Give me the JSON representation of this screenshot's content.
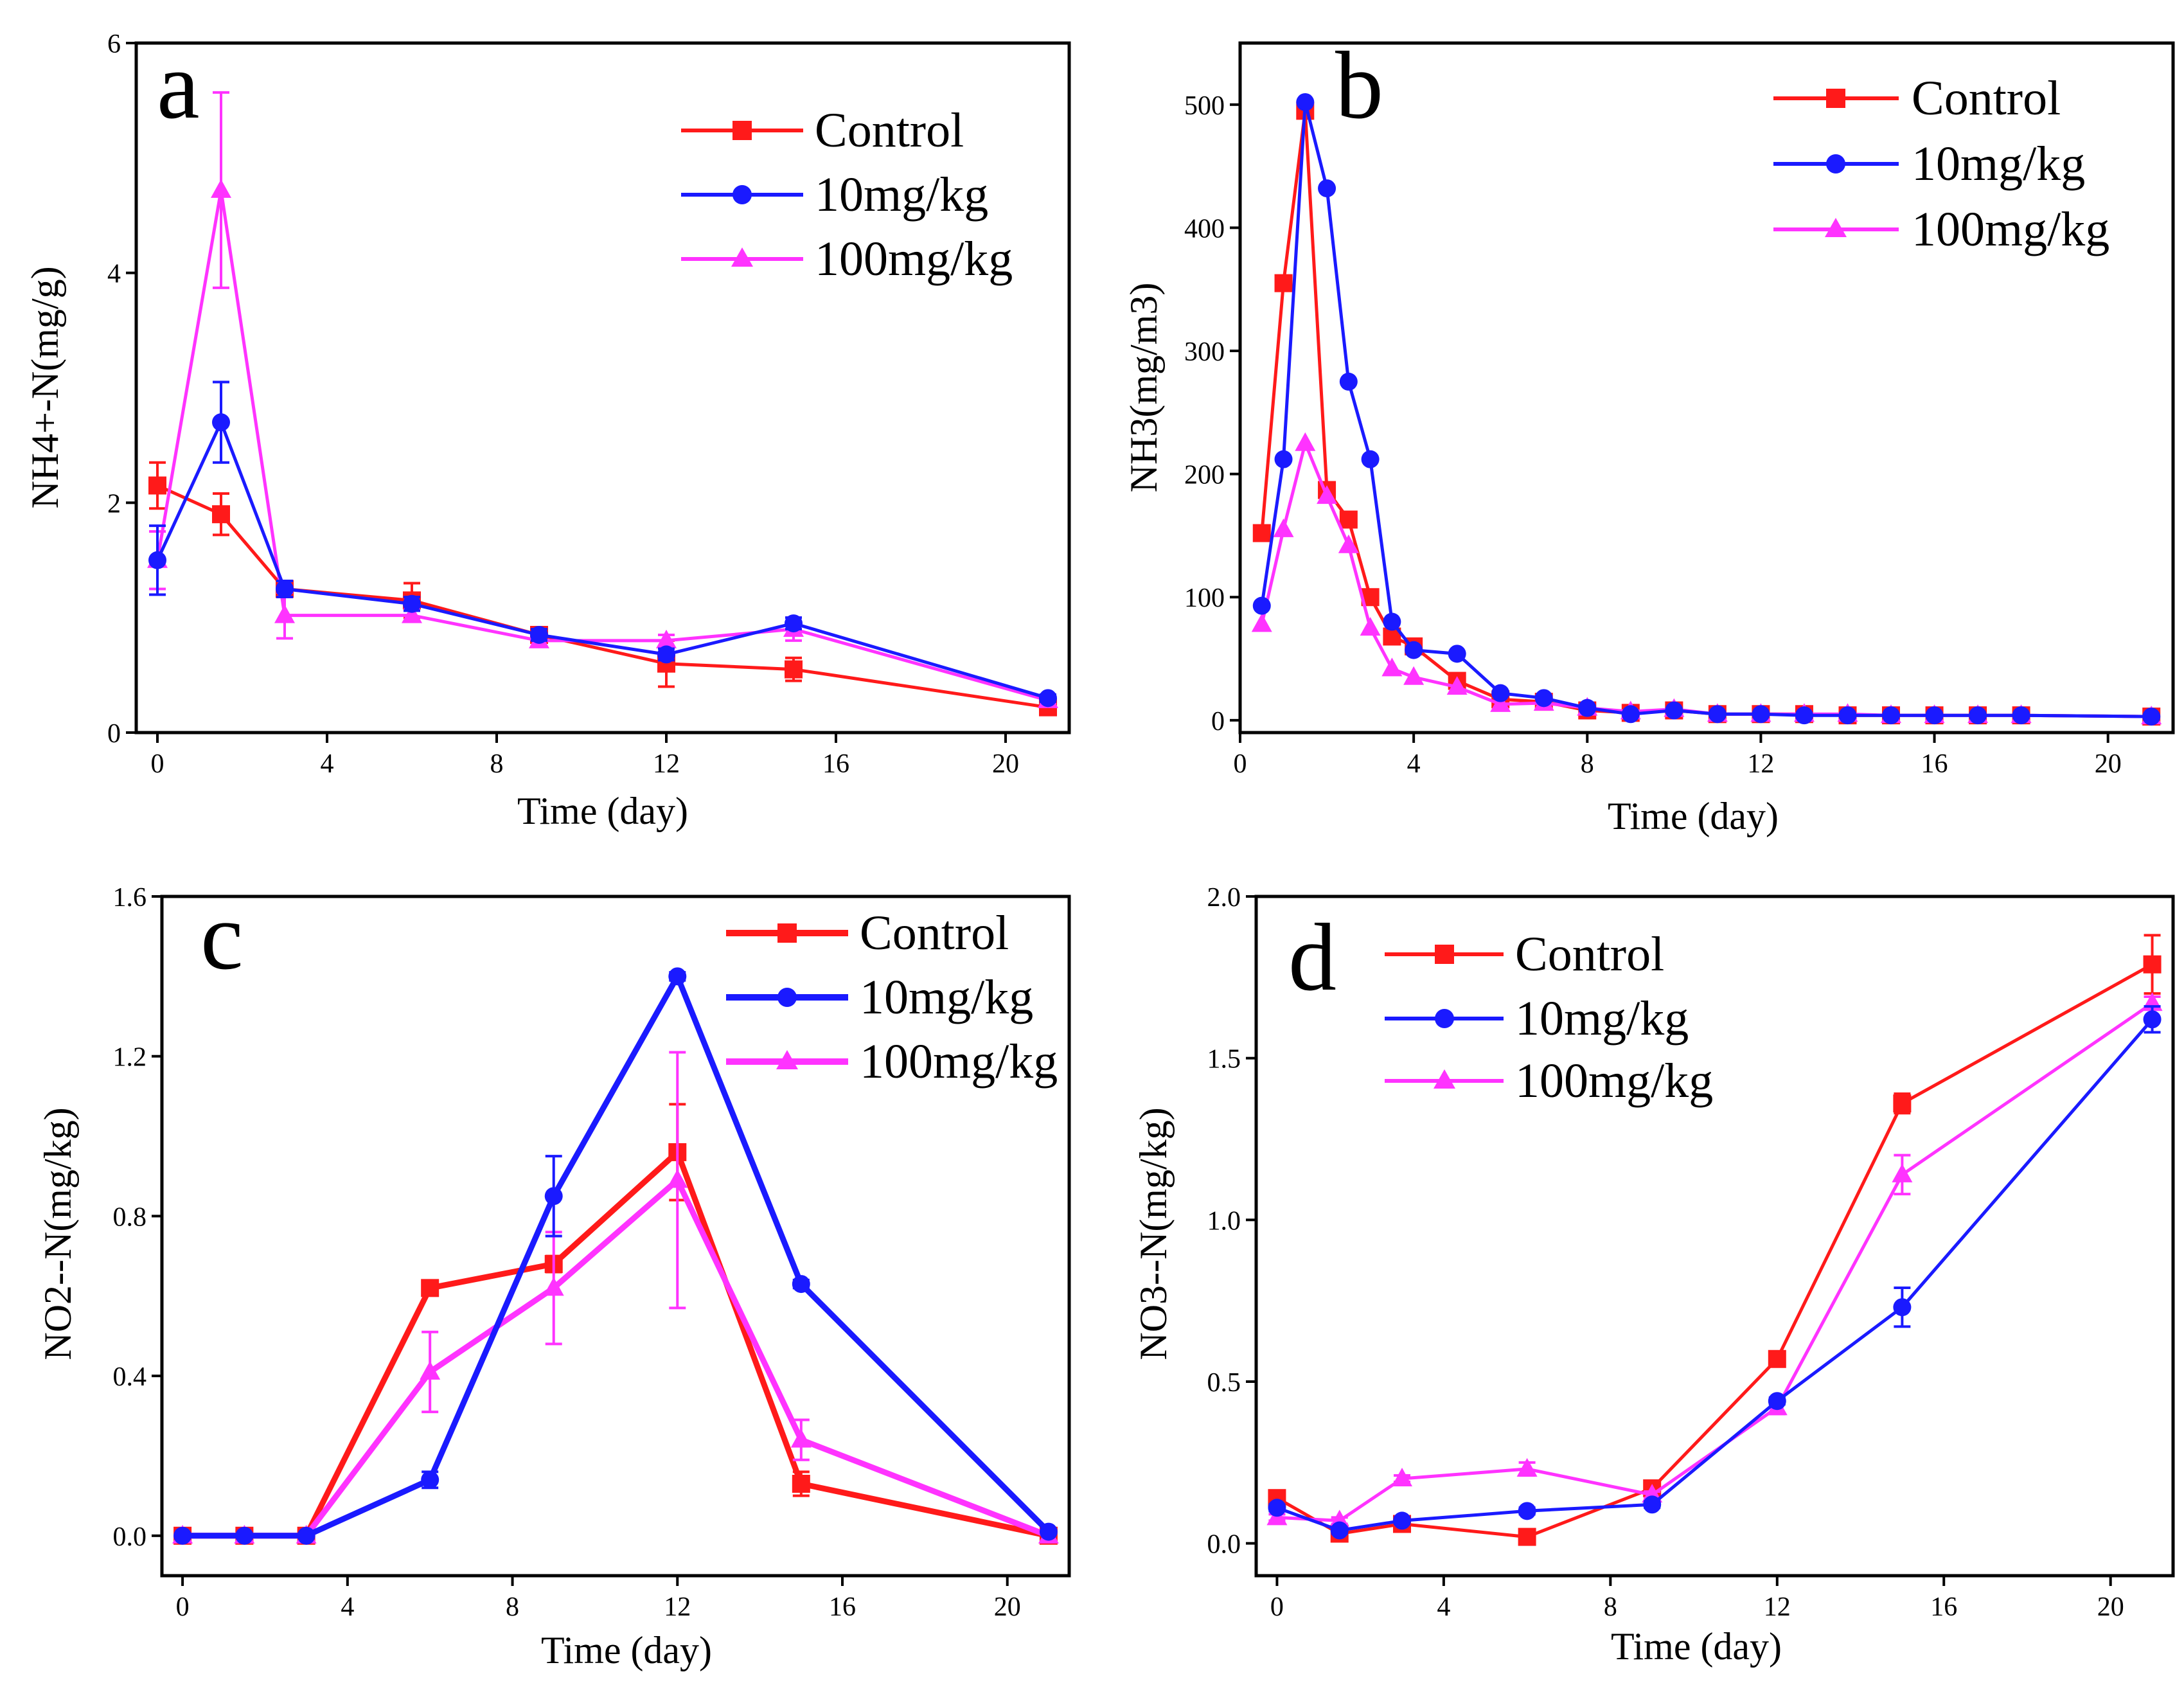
{
  "colors": {
    "control": "#ff1a1a",
    "low": "#1a1aff",
    "high": "#ff33ff"
  },
  "chart_data": [
    {
      "type": "line",
      "panel": "a",
      "xlabel": "Time (day)",
      "ylabel": "NH4+-N(mg/g)",
      "xlim": [
        -0.5,
        21.5
      ],
      "ylim": [
        0,
        6
      ],
      "xticks": [
        0,
        4,
        8,
        12,
        16,
        20
      ],
      "yticks": [
        0,
        2,
        4,
        6
      ],
      "legend": "top-right",
      "series": [
        {
          "name": "Control",
          "color_key": "control",
          "marker": "square",
          "x": [
            0,
            1.5,
            3,
            6,
            9,
            12,
            15,
            21
          ],
          "y": [
            2.15,
            1.9,
            1.25,
            1.15,
            0.85,
            0.6,
            0.55,
            0.22
          ],
          "err": [
            0.2,
            0.18,
            0.07,
            0.15,
            0.05,
            0.2,
            0.1,
            0.05
          ]
        },
        {
          "name": "10mg/kg",
          "color_key": "low",
          "marker": "circle",
          "x": [
            0,
            1.5,
            3,
            6,
            9,
            12,
            15,
            21
          ],
          "y": [
            1.5,
            2.7,
            1.25,
            1.12,
            0.85,
            0.68,
            0.95,
            0.3
          ],
          "err": [
            0.3,
            0.35,
            0.07,
            0.06,
            0.05,
            0.05,
            0.05,
            0.03
          ]
        },
        {
          "name": "100mg/kg",
          "color_key": "high",
          "marker": "triangle",
          "x": [
            0,
            1.5,
            3,
            6,
            9,
            12,
            15,
            21
          ],
          "y": [
            1.5,
            4.72,
            1.02,
            1.02,
            0.8,
            0.8,
            0.9,
            0.28
          ],
          "err": [
            0.25,
            0.85,
            0.2,
            0.05,
            0.05,
            0.05,
            0.1,
            0.03
          ]
        }
      ]
    },
    {
      "type": "line",
      "panel": "b",
      "xlabel": "Time (day)",
      "ylabel": "NH3(mg/m3)",
      "xlim": [
        0,
        21.5
      ],
      "ylim": [
        -10,
        550
      ],
      "xticks": [
        0,
        4,
        8,
        12,
        16,
        20
      ],
      "yticks": [
        0,
        100,
        200,
        300,
        400,
        500
      ],
      "legend": "top-right",
      "series": [
        {
          "name": "Control",
          "color_key": "control",
          "marker": "square",
          "x": [
            0.5,
            1,
            1.5,
            2,
            2.5,
            3,
            3.5,
            4,
            5,
            6,
            7,
            8,
            9,
            10,
            11,
            12,
            13,
            14,
            15,
            16,
            17,
            18,
            21
          ],
          "y": [
            152,
            355,
            495,
            187,
            163,
            100,
            68,
            60,
            32,
            17,
            15,
            8,
            6,
            8,
            5,
            5,
            5,
            4,
            4,
            4,
            4,
            4,
            3
          ]
        },
        {
          "name": "10mg/kg",
          "color_key": "low",
          "marker": "circle",
          "x": [
            0.5,
            1,
            1.5,
            2,
            2.5,
            3,
            3.5,
            4,
            5,
            6,
            7,
            8,
            9,
            10,
            11,
            12,
            13,
            14,
            15,
            16,
            17,
            18,
            21
          ],
          "y": [
            93,
            212,
            502,
            432,
            275,
            212,
            80,
            57,
            54,
            22,
            18,
            10,
            5,
            8,
            5,
            5,
            4,
            4,
            4,
            4,
            4,
            4,
            3
          ]
        },
        {
          "name": "100mg/kg",
          "color_key": "high",
          "marker": "triangle",
          "x": [
            0.5,
            1,
            1.5,
            2,
            2.5,
            3,
            3.5,
            4,
            5,
            6,
            7,
            8,
            9,
            10,
            11,
            12,
            13,
            14,
            15,
            16,
            17,
            18,
            21
          ],
          "y": [
            78,
            155,
            225,
            182,
            142,
            75,
            42,
            35,
            27,
            13,
            14,
            10,
            7,
            9,
            5,
            5,
            5,
            5,
            4,
            4,
            4,
            4,
            3
          ]
        }
      ]
    },
    {
      "type": "line",
      "panel": "c",
      "xlabel": "Time (day)",
      "ylabel": "NO2--N(mg/kg)",
      "xlim": [
        -0.5,
        21.5
      ],
      "ylim": [
        -0.1,
        1.6
      ],
      "xticks": [
        0,
        4,
        8,
        12,
        16,
        20
      ],
      "yticks": [
        0.0,
        0.4,
        0.8,
        1.2,
        1.6
      ],
      "legend": "top-right",
      "series": [
        {
          "name": "Control",
          "color_key": "control",
          "marker": "square",
          "x": [
            0,
            1.5,
            3,
            6,
            9,
            12,
            15,
            21
          ],
          "y": [
            0,
            0,
            0,
            0.62,
            0.68,
            0.96,
            0.13,
            0
          ],
          "err": [
            0,
            0,
            0,
            0.01,
            0.02,
            0.12,
            0.03,
            0
          ]
        },
        {
          "name": "10mg/kg",
          "color_key": "low",
          "marker": "circle",
          "x": [
            0,
            1.5,
            3,
            6,
            9,
            12,
            15,
            21
          ],
          "y": [
            0,
            0,
            0,
            0.14,
            0.85,
            1.4,
            0.63,
            0.01
          ],
          "err": [
            0,
            0,
            0,
            0.02,
            0.1,
            0.01,
            0.01,
            0
          ]
        },
        {
          "name": "100mg/kg",
          "color_key": "high",
          "marker": "triangle",
          "x": [
            0,
            1.5,
            3,
            6,
            9,
            12,
            15,
            21
          ],
          "y": [
            0,
            0,
            0,
            0.41,
            0.62,
            0.89,
            0.24,
            0
          ],
          "err": [
            0,
            0,
            0,
            0.1,
            0.14,
            0.32,
            0.05,
            0
          ]
        }
      ]
    },
    {
      "type": "line",
      "panel": "d",
      "xlabel": "Time (day)",
      "ylabel": "NO3--N(mg/kg)",
      "xlim": [
        -0.5,
        21.5
      ],
      "ylim": [
        -0.1,
        2.0
      ],
      "xticks": [
        0,
        4,
        8,
        12,
        16,
        20
      ],
      "yticks": [
        0.0,
        0.5,
        1.0,
        1.5,
        2.0
      ],
      "legend": "top-left",
      "series": [
        {
          "name": "Control",
          "color_key": "control",
          "marker": "square",
          "x": [
            0,
            1.5,
            3,
            6,
            9,
            12,
            15,
            21
          ],
          "y": [
            0.14,
            0.03,
            0.06,
            0.02,
            0.17,
            0.57,
            1.36,
            1.79
          ],
          "err": [
            0.01,
            0.01,
            0.01,
            0.01,
            0.01,
            0.01,
            0.03,
            0.09
          ]
        },
        {
          "name": "10mg/kg",
          "color_key": "low",
          "marker": "circle",
          "x": [
            0,
            1.5,
            3,
            6,
            9,
            12,
            15,
            21
          ],
          "y": [
            0.11,
            0.04,
            0.07,
            0.1,
            0.12,
            0.44,
            0.73,
            1.62
          ],
          "err": [
            0.01,
            0.01,
            0.01,
            0.01,
            0.01,
            0.01,
            0.06,
            0.04
          ]
        },
        {
          "name": "100mg/kg",
          "color_key": "high",
          "marker": "triangle",
          "x": [
            0,
            1.5,
            3,
            6,
            9,
            12,
            15,
            21
          ],
          "y": [
            0.08,
            0.07,
            0.2,
            0.23,
            0.15,
            0.42,
            1.14,
            1.67
          ],
          "err": [
            0.01,
            0.01,
            0.01,
            0.02,
            0.01,
            0.02,
            0.06,
            0.02
          ]
        }
      ]
    }
  ]
}
